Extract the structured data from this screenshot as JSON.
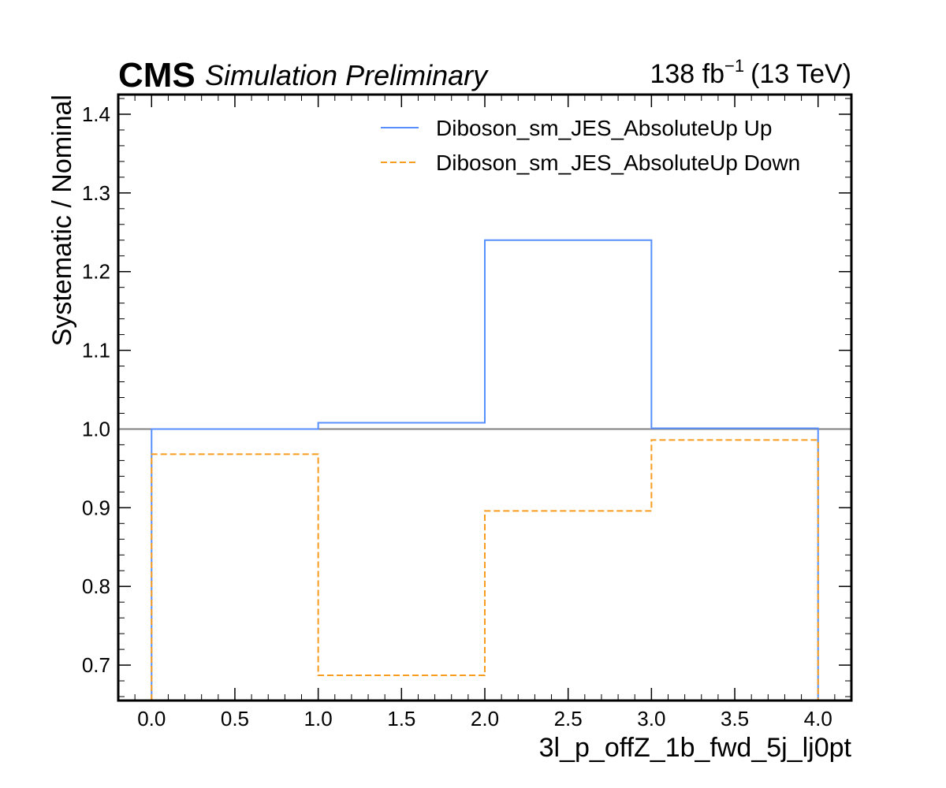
{
  "header": {
    "experiment": "CMS",
    "status": "Simulation Preliminary",
    "lumi_value": "138 fb",
    "lumi_exponent": "−1",
    "energy": "(13 TeV)"
  },
  "colors": {
    "up": "#5790fc",
    "down": "#f89c20",
    "reference": "#808080"
  },
  "chart_data": {
    "type": "line",
    "drawstyle": "step",
    "xlabel": "3l_p_offZ_1b_fwd_5j_lj0pt",
    "ylabel": "Systematic / Nominal",
    "xlim": [
      -0.2,
      4.2
    ],
    "ylim": [
      0.655,
      1.425
    ],
    "xticks": [
      "0.0",
      "0.5",
      "1.0",
      "1.5",
      "2.0",
      "2.5",
      "3.0",
      "3.5",
      "4.0"
    ],
    "yticks": [
      "0.7",
      "0.8",
      "0.9",
      "1.0",
      "1.1",
      "1.2",
      "1.3",
      "1.4"
    ],
    "bin_edges": [
      0,
      1,
      2,
      3,
      4
    ],
    "reference_line": 1.0,
    "legend_position": "top-right",
    "series": [
      {
        "name": "Diboson_sm_JES_AbsoluteUp Up",
        "values": [
          1.0,
          1.008,
          1.24,
          1.001
        ],
        "style": "solid"
      },
      {
        "name": "Diboson_sm_JES_AbsoluteUp Down",
        "values": [
          0.968,
          0.687,
          0.896,
          0.986
        ],
        "style": "dashed"
      }
    ]
  }
}
